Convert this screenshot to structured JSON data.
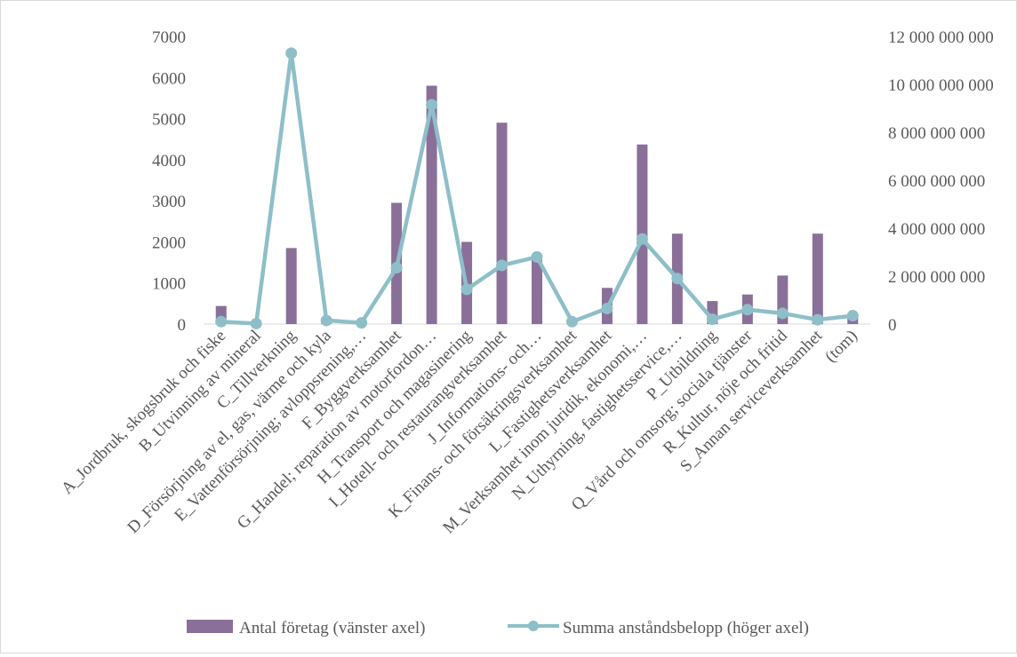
{
  "chart_data": {
    "type": "bar",
    "categories": [
      "A_Jordbruk, skogsbruk och fiske",
      "B_Utvinning av mineral",
      "C_Tillverkning",
      "D_Försörjning av el, gas, värme och kyla",
      "E_Vattenförsörjning; avloppsrening,…",
      "F_Byggverksamhet",
      "G_Handel; reparation av motorfordon…",
      "H_Transport och magasinering",
      "I_Hotell- och restaurangverksamhet",
      "J_Informations- och…",
      "K_Finans- och försäkringsverksamhet",
      "L_Fastighetsverksamhet",
      "M_Verksamhet inom juridik, ekonomi,…",
      "N_Uthyrning, fastighetsservice,…",
      "P_Utbildning",
      "Q_Vård och omsorg; sociala tjänster",
      "R_Kultur, nöje och fritid",
      "S_Annan serviceverksamhet",
      "(tom)"
    ],
    "series": [
      {
        "name": "Antal företag (vänster axel)",
        "type": "bar",
        "axis": "left",
        "color": "#8a7099",
        "values": [
          440,
          10,
          1850,
          100,
          40,
          2950,
          5800,
          2000,
          4900,
          1600,
          20,
          880,
          4370,
          2200,
          560,
          720,
          1180,
          2200,
          180
        ]
      },
      {
        "name": "Summa anståndsbelopp (höger axel)",
        "type": "line",
        "axis": "right",
        "color": "#8ebfc9",
        "values": [
          100000000,
          20000000,
          11300000000,
          150000000,
          50000000,
          2350000000,
          9150000000,
          1450000000,
          2450000000,
          2800000000,
          100000000,
          650000000,
          3550000000,
          1900000000,
          200000000,
          600000000,
          450000000,
          180000000,
          350000000
        ]
      }
    ],
    "y_left": {
      "min": 0,
      "max": 7000,
      "ticks": [
        0,
        1000,
        2000,
        3000,
        4000,
        5000,
        6000,
        7000
      ],
      "tick_labels": [
        "0",
        "1000",
        "2000",
        "3000",
        "4000",
        "5000",
        "6000",
        "7000"
      ]
    },
    "y_right": {
      "min": 0,
      "max": 12000000000,
      "ticks": [
        0,
        2000000000,
        4000000000,
        6000000000,
        8000000000,
        10000000000,
        12000000000
      ],
      "tick_labels": [
        "0",
        "2 000 000 000",
        "4 000 000 000",
        "6 000 000 000",
        "8 000 000 000",
        "10 000 000 000",
        "12 000 000 000"
      ]
    },
    "grid": false,
    "legend_position": "bottom"
  }
}
